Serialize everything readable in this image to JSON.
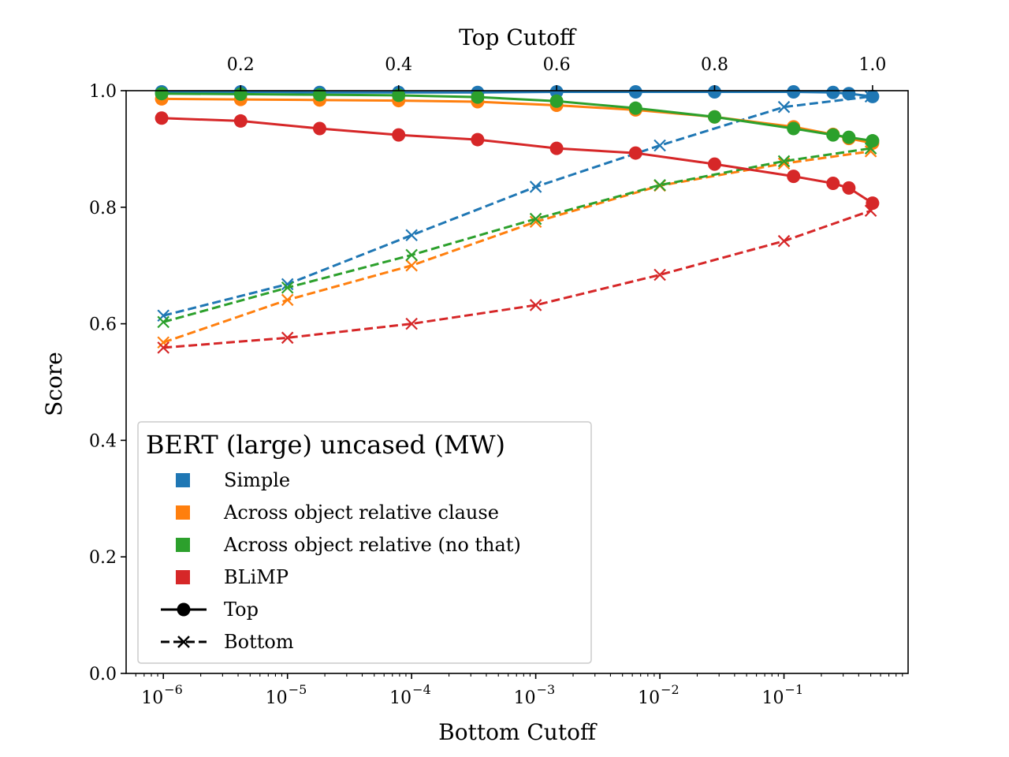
{
  "chart_data": {
    "type": "line",
    "ylabel": "Score",
    "xlabel_bottom": "Bottom Cutoff",
    "xlabel_top": "Top Cutoff",
    "ylim": [
      0.0,
      1.0
    ],
    "yticks": [
      "0.0",
      "0.2",
      "0.4",
      "0.6",
      "0.8",
      "1.0"
    ],
    "bottom_axis": {
      "scale": "log",
      "range_exp": [
        -6.3,
        0.0
      ],
      "ticks": [
        {
          "exp": -6,
          "base": "10",
          "label": "−6"
        },
        {
          "exp": -5,
          "base": "10",
          "label": "−5"
        },
        {
          "exp": -4,
          "base": "10",
          "label": "−4"
        },
        {
          "exp": -3,
          "base": "10",
          "label": "−3"
        },
        {
          "exp": -2,
          "base": "10",
          "label": "−2"
        },
        {
          "exp": -1,
          "base": "10",
          "label": "−1"
        }
      ]
    },
    "top_axis": {
      "scale": "linear",
      "range": [
        0.055,
        1.045
      ],
      "ticks": [
        "0.2",
        "0.4",
        "0.6",
        "0.8",
        "1.0"
      ]
    },
    "legend": {
      "title": "BERT (large) uncased (MW)",
      "placement": "lower-left",
      "series_labels": [
        "Simple",
        "Across object relative clause",
        "Across object relative (no that)",
        "BLiMP"
      ],
      "style_labels": [
        "Top",
        "Bottom"
      ]
    },
    "colors": {
      "Simple": "#1f77b4",
      "Across object relative clause": "#ff7f0e",
      "Across object relative (no that)": "#2ca02c",
      "BLiMP": "#d62728"
    },
    "top_x": [
      0.1,
      0.2,
      0.3,
      0.4,
      0.5,
      0.6,
      0.7,
      0.8,
      0.9,
      0.95,
      0.97,
      1.0
    ],
    "bottom_x": [
      1e-06,
      1e-05,
      0.0001,
      0.001,
      0.01,
      0.1,
      0.5
    ],
    "series": [
      {
        "name": "Simple",
        "top": [
          0.998,
          0.998,
          0.997,
          0.997,
          0.997,
          0.998,
          0.998,
          0.998,
          0.998,
          0.997,
          0.995,
          0.99
        ],
        "bottom": [
          0.614,
          0.668,
          0.752,
          0.835,
          0.906,
          0.972,
          0.99
        ]
      },
      {
        "name": "Across object relative clause",
        "top": [
          0.986,
          0.985,
          0.984,
          0.983,
          0.981,
          0.975,
          0.967,
          0.955,
          0.938,
          0.925,
          0.918,
          0.91
        ],
        "bottom": [
          0.568,
          0.641,
          0.7,
          0.775,
          0.837,
          0.875,
          0.896
        ]
      },
      {
        "name": "Across object relative (no that)",
        "top": [
          0.995,
          0.994,
          0.993,
          0.992,
          0.989,
          0.982,
          0.97,
          0.955,
          0.935,
          0.924,
          0.92,
          0.914
        ],
        "bottom": [
          0.603,
          0.662,
          0.718,
          0.78,
          0.838,
          0.879,
          0.901
        ]
      },
      {
        "name": "BLiMP",
        "top": [
          0.953,
          0.948,
          0.935,
          0.924,
          0.916,
          0.901,
          0.893,
          0.874,
          0.853,
          0.841,
          0.833,
          0.807
        ],
        "bottom": [
          0.559,
          0.576,
          0.6,
          0.632,
          0.684,
          0.742,
          0.794
        ]
      }
    ]
  }
}
